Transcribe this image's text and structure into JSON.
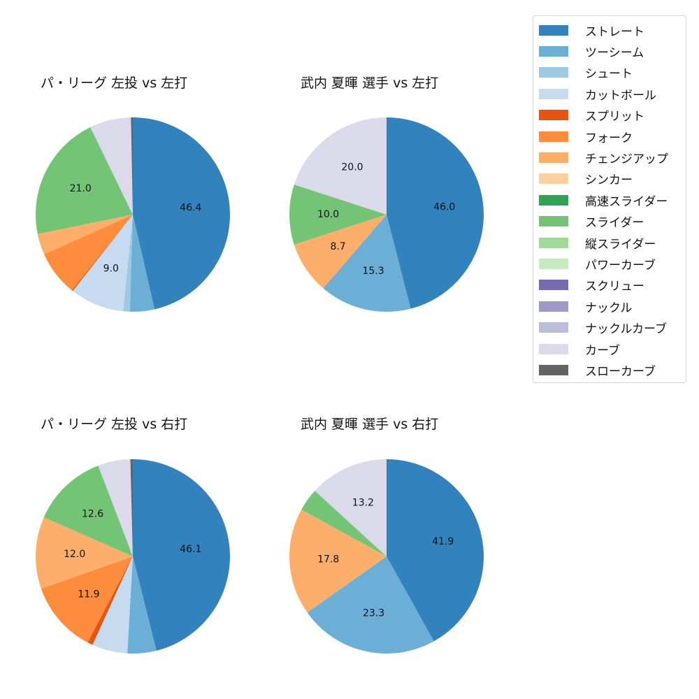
{
  "legend": {
    "items": [
      {
        "label": "ストレート",
        "color": "#3182bd"
      },
      {
        "label": "ツーシーム",
        "color": "#6baed6"
      },
      {
        "label": "シュート",
        "color": "#9ecae1"
      },
      {
        "label": "カットボール",
        "color": "#c6dbef"
      },
      {
        "label": "スプリット",
        "color": "#e6550d"
      },
      {
        "label": "フォーク",
        "color": "#fd8d3c"
      },
      {
        "label": "チェンジアップ",
        "color": "#fdae6b"
      },
      {
        "label": "シンカー",
        "color": "#fdd0a2"
      },
      {
        "label": "高速スライダー",
        "color": "#31a354"
      },
      {
        "label": "スライダー",
        "color": "#74c476"
      },
      {
        "label": "縦スライダー",
        "color": "#a1d99b"
      },
      {
        "label": "パワーカーブ",
        "color": "#c7e9c0"
      },
      {
        "label": "スクリュー",
        "color": "#756bb1"
      },
      {
        "label": "ナックル",
        "color": "#9e9ac8"
      },
      {
        "label": "ナックルカーブ",
        "color": "#bcbddc"
      },
      {
        "label": "カーブ",
        "color": "#dadaeb"
      },
      {
        "label": "スローカーブ",
        "color": "#636363"
      }
    ]
  },
  "chart_data": [
    {
      "type": "pie",
      "title": "パ・リーグ 左投 vs 左打",
      "categories": [
        "ストレート",
        "ツーシーム",
        "シュート",
        "カットボール",
        "スプリット",
        "フォーク",
        "チェンジアップ",
        "スライダー",
        "カーブ",
        "スローカーブ"
      ],
      "values": [
        46.4,
        4.1,
        1.1,
        9.0,
        0.2,
        7.5,
        3.5,
        21.0,
        6.9,
        0.3
      ],
      "labels": [
        "46.4",
        "",
        "",
        "9.0",
        "",
        "",
        "",
        "21.0",
        "",
        ""
      ],
      "start_angle": 90,
      "direction": "clockwise"
    },
    {
      "type": "pie",
      "title": "武内 夏暉 選手 vs 左打",
      "categories": [
        "ストレート",
        "ツーシーム",
        "チェンジアップ",
        "スライダー",
        "カーブ"
      ],
      "values": [
        46.0,
        15.3,
        8.7,
        10.0,
        20.0
      ],
      "labels": [
        "46.0",
        "15.3",
        "8.7",
        "10.0",
        "20.0"
      ],
      "start_angle": 90,
      "direction": "clockwise"
    },
    {
      "type": "pie",
      "title": "パ・リーグ 左投 vs 右打",
      "categories": [
        "ストレート",
        "ツーシーム",
        "カットボール",
        "スプリット",
        "フォーク",
        "チェンジアップ",
        "スライダー",
        "カーブ",
        "スローカーブ"
      ],
      "values": [
        46.1,
        4.8,
        5.9,
        0.9,
        11.9,
        12.0,
        12.6,
        5.4,
        0.4
      ],
      "labels": [
        "46.1",
        "",
        "",
        "",
        "11.9",
        "12.0",
        "12.6",
        "",
        ""
      ],
      "start_angle": 90,
      "direction": "clockwise"
    },
    {
      "type": "pie",
      "title": "武内 夏暉 選手 vs 右打",
      "categories": [
        "ストレート",
        "ツーシーム",
        "チェンジアップ",
        "スライダー",
        "カーブ"
      ],
      "values": [
        41.9,
        23.3,
        17.8,
        3.8,
        13.2
      ],
      "labels": [
        "41.9",
        "23.3",
        "17.8",
        "",
        "13.2"
      ],
      "start_angle": 90,
      "direction": "clockwise"
    }
  ],
  "panels": [
    {
      "title": "パ・リーグ 左投 vs 左打"
    },
    {
      "title": "武内 夏暉 選手 vs 左打"
    },
    {
      "title": "パ・リーグ 左投 vs 右打"
    },
    {
      "title": "武内 夏暉 選手 vs 右打"
    }
  ]
}
